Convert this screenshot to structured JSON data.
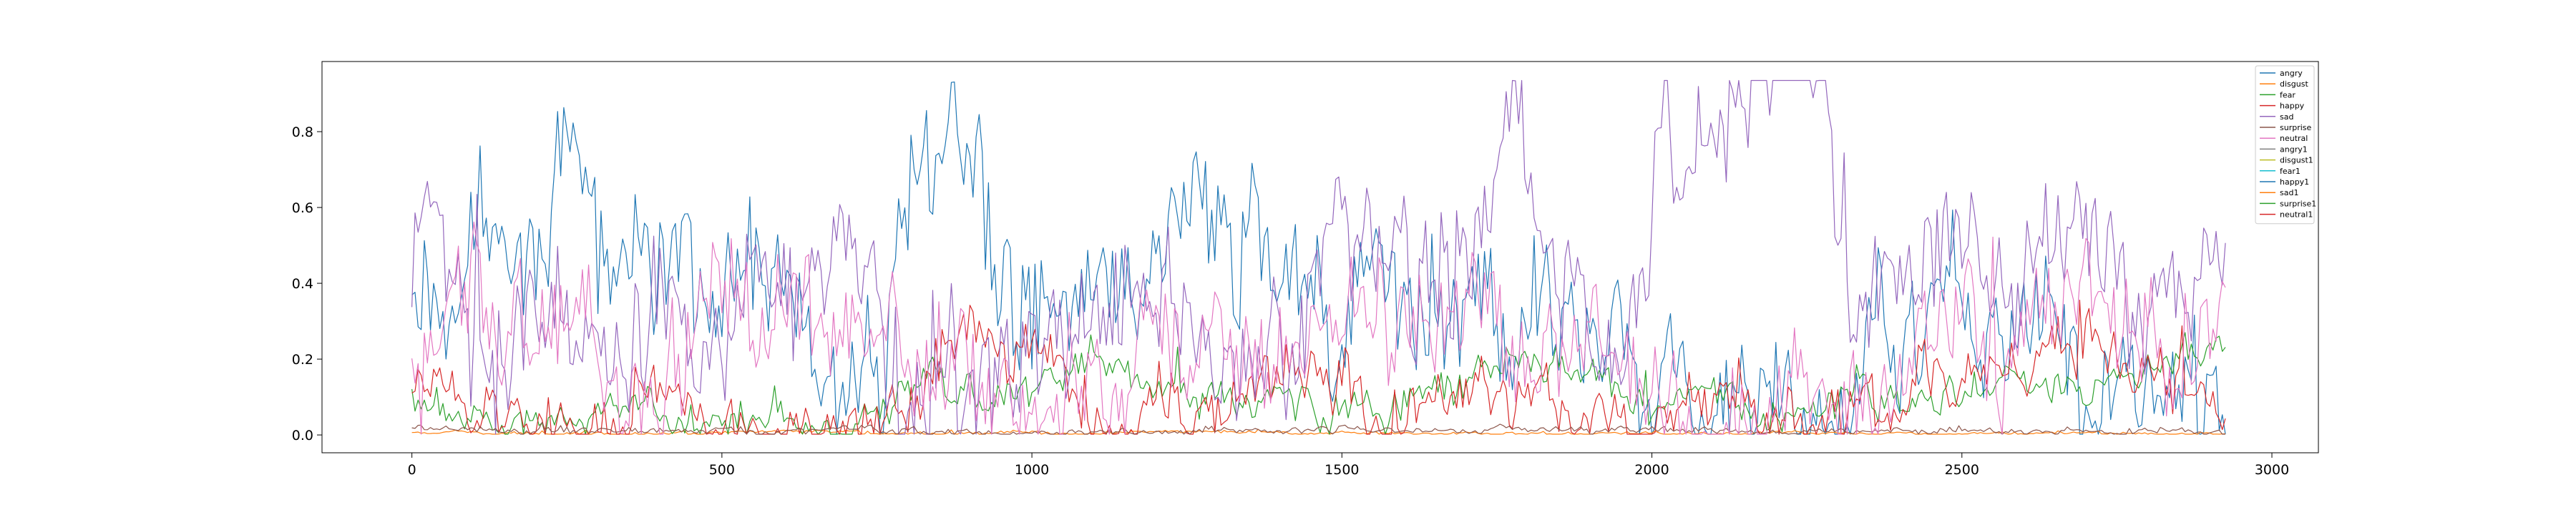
{
  "chart_data": {
    "type": "line",
    "title": "",
    "xlabel": "",
    "ylabel": "",
    "xlim": [
      -145,
      3075
    ],
    "ylim": [
      -0.047,
      0.985
    ],
    "x_ticks": [
      0,
      500,
      1000,
      1500,
      2000,
      2500,
      3000
    ],
    "x_tick_labels": [
      "0",
      "500",
      "1000",
      "1500",
      "2000",
      "2500",
      "3000"
    ],
    "y_ticks": [
      0.0,
      0.2,
      0.4,
      0.6,
      0.8
    ],
    "y_tick_labels": [
      "0.0",
      "0.2",
      "0.4",
      "0.6",
      "0.8"
    ],
    "grid": false,
    "legend_position": "top-right",
    "n_points": 2930,
    "x_step": 5,
    "series": [
      {
        "name": "angry",
        "color": "#1f77b4",
        "knots": [
          [
            0,
            0.28
          ],
          [
            60,
            0.45
          ],
          [
            130,
            0.6
          ],
          [
            200,
            0.55
          ],
          [
            280,
            0.5
          ],
          [
            350,
            0.45
          ],
          [
            430,
            0.4
          ],
          [
            500,
            0.35
          ],
          [
            560,
            0.3
          ],
          [
            620,
            0.22
          ],
          [
            700,
            0.18
          ],
          [
            760,
            0.2
          ],
          [
            790,
            0.82
          ],
          [
            850,
            0.78
          ],
          [
            900,
            0.7
          ],
          [
            940,
            0.35
          ],
          [
            1000,
            0.3
          ],
          [
            1060,
            0.45
          ],
          [
            1120,
            0.42
          ],
          [
            1180,
            0.3
          ],
          [
            1240,
            0.45
          ],
          [
            1300,
            0.55
          ],
          [
            1360,
            0.45
          ],
          [
            1420,
            0.5
          ],
          [
            1480,
            0.3
          ],
          [
            1560,
            0.35
          ],
          [
            1620,
            0.28
          ],
          [
            1700,
            0.3
          ],
          [
            1760,
            0.25
          ],
          [
            1830,
            0.28
          ],
          [
            1900,
            0.2
          ],
          [
            1960,
            0.35
          ],
          [
            2000,
            0.05
          ],
          [
            2100,
            0.04
          ],
          [
            2200,
            0.03
          ],
          [
            2300,
            0.04
          ],
          [
            2360,
            0.4
          ],
          [
            2440,
            0.45
          ],
          [
            2520,
            0.35
          ],
          [
            2600,
            0.3
          ],
          [
            2680,
            0.25
          ],
          [
            2760,
            0.18
          ],
          [
            2850,
            0.12
          ],
          [
            2930,
            0.2
          ]
        ],
        "amps": [
          0.25,
          0.18,
          0.12,
          0.06
        ]
      },
      {
        "name": "disgust",
        "color": "#ff7f0e",
        "knots": [
          [
            0,
            0.005
          ],
          [
            1000,
            0.006
          ],
          [
            2000,
            0.004
          ],
          [
            2930,
            0.005
          ]
        ],
        "amps": [
          0.006,
          0.004,
          0.003,
          0.002
        ]
      },
      {
        "name": "fear",
        "color": "#2ca02c",
        "knots": [
          [
            0,
            0.08
          ],
          [
            200,
            0.05
          ],
          [
            400,
            0.06
          ],
          [
            600,
            0.05
          ],
          [
            760,
            0.03
          ],
          [
            800,
            0.12
          ],
          [
            900,
            0.1
          ],
          [
            1000,
            0.08
          ],
          [
            1100,
            0.18
          ],
          [
            1160,
            0.12
          ],
          [
            1300,
            0.1
          ],
          [
            1500,
            0.08
          ],
          [
            1600,
            0.1
          ],
          [
            1700,
            0.1
          ],
          [
            1800,
            0.18
          ],
          [
            1900,
            0.15
          ],
          [
            2000,
            0.08
          ],
          [
            2100,
            0.1
          ],
          [
            2200,
            0.06
          ],
          [
            2300,
            0.08
          ],
          [
            2400,
            0.1
          ],
          [
            2500,
            0.12
          ],
          [
            2600,
            0.15
          ],
          [
            2700,
            0.15
          ],
          [
            2800,
            0.18
          ],
          [
            2930,
            0.22
          ]
        ],
        "amps": [
          0.07,
          0.05,
          0.03,
          0.02
        ]
      },
      {
        "name": "happy",
        "color": "#d62728",
        "knots": [
          [
            0,
            0.1
          ],
          [
            200,
            0.04
          ],
          [
            400,
            0.06
          ],
          [
            600,
            0.08
          ],
          [
            800,
            0.05
          ],
          [
            900,
            0.25
          ],
          [
            1000,
            0.2
          ],
          [
            1100,
            0.08
          ],
          [
            1300,
            0.12
          ],
          [
            1400,
            0.15
          ],
          [
            1500,
            0.12
          ],
          [
            1600,
            0.08
          ],
          [
            1700,
            0.06
          ],
          [
            1800,
            0.05
          ],
          [
            1900,
            0.04
          ],
          [
            2000,
            0.03
          ],
          [
            2300,
            0.03
          ],
          [
            2400,
            0.1
          ],
          [
            2500,
            0.15
          ],
          [
            2600,
            0.18
          ],
          [
            2700,
            0.2
          ],
          [
            2800,
            0.1
          ],
          [
            2930,
            0.05
          ]
        ],
        "amps": [
          0.12,
          0.08,
          0.05,
          0.03
        ]
      },
      {
        "name": "sad",
        "color": "#9467bd",
        "knots": [
          [
            0,
            0.35
          ],
          [
            30,
            0.55
          ],
          [
            80,
            0.4
          ],
          [
            130,
            0.3
          ],
          [
            200,
            0.35
          ],
          [
            260,
            0.3
          ],
          [
            340,
            0.35
          ],
          [
            420,
            0.45
          ],
          [
            500,
            0.4
          ],
          [
            580,
            0.45
          ],
          [
            660,
            0.5
          ],
          [
            740,
            0.45
          ],
          [
            780,
            0.1
          ],
          [
            860,
            0.15
          ],
          [
            920,
            0.2
          ],
          [
            1000,
            0.25
          ],
          [
            1080,
            0.15
          ],
          [
            1140,
            0.2
          ],
          [
            1200,
            0.35
          ],
          [
            1260,
            0.3
          ],
          [
            1340,
            0.25
          ],
          [
            1400,
            0.35
          ],
          [
            1480,
            0.45
          ],
          [
            1560,
            0.55
          ],
          [
            1620,
            0.3
          ],
          [
            1680,
            0.35
          ],
          [
            1740,
            0.55
          ],
          [
            1780,
            0.85
          ],
          [
            1820,
            0.6
          ],
          [
            1860,
            0.5
          ],
          [
            1920,
            0.35
          ],
          [
            1980,
            0.4
          ],
          [
            2020,
            0.8
          ],
          [
            2100,
            0.82
          ],
          [
            2160,
            0.85
          ],
          [
            2220,
            0.88
          ],
          [
            2280,
            0.85
          ],
          [
            2320,
            0.4
          ],
          [
            2400,
            0.45
          ],
          [
            2480,
            0.5
          ],
          [
            2560,
            0.45
          ],
          [
            2640,
            0.4
          ],
          [
            2720,
            0.5
          ],
          [
            2800,
            0.55
          ],
          [
            2880,
            0.5
          ],
          [
            2930,
            0.55
          ]
        ],
        "amps": [
          0.25,
          0.18,
          0.12,
          0.05
        ]
      },
      {
        "name": "surprise",
        "color": "#8c564b",
        "knots": [
          [
            0,
            0.015
          ],
          [
            1000,
            0.01
          ],
          [
            2000,
            0.012
          ],
          [
            2930,
            0.01
          ]
        ],
        "amps": [
          0.01,
          0.008,
          0.006,
          0.004
        ]
      },
      {
        "name": "neutral",
        "color": "#e377c2",
        "knots": [
          [
            0,
            0.2
          ],
          [
            100,
            0.25
          ],
          [
            200,
            0.3
          ],
          [
            300,
            0.25
          ],
          [
            400,
            0.2
          ],
          [
            500,
            0.28
          ],
          [
            600,
            0.25
          ],
          [
            700,
            0.2
          ],
          [
            800,
            0.15
          ],
          [
            900,
            0.2
          ],
          [
            1000,
            0.15
          ],
          [
            1100,
            0.2
          ],
          [
            1200,
            0.3
          ],
          [
            1300,
            0.2
          ],
          [
            1400,
            0.25
          ],
          [
            1500,
            0.3
          ],
          [
            1600,
            0.25
          ],
          [
            1700,
            0.3
          ],
          [
            1800,
            0.2
          ],
          [
            1900,
            0.25
          ],
          [
            2000,
            0.05
          ],
          [
            2300,
            0.04
          ],
          [
            2400,
            0.2
          ],
          [
            2500,
            0.25
          ],
          [
            2600,
            0.3
          ],
          [
            2700,
            0.35
          ],
          [
            2800,
            0.3
          ],
          [
            2930,
            0.25
          ]
        ],
        "amps": [
          0.22,
          0.15,
          0.1,
          0.05
        ]
      },
      {
        "name": "angry1",
        "color": "#7f7f7f",
        "knots": [],
        "amps": [
          0,
          0,
          0,
          0
        ]
      },
      {
        "name": "disgust1",
        "color": "#bcbd22",
        "knots": [],
        "amps": [
          0,
          0,
          0,
          0
        ]
      },
      {
        "name": "fear1",
        "color": "#17becf",
        "knots": [],
        "amps": [
          0,
          0,
          0,
          0
        ]
      },
      {
        "name": "happy1",
        "color": "#1f77b4",
        "knots": [],
        "amps": [
          0,
          0,
          0,
          0
        ]
      },
      {
        "name": "sad1",
        "color": "#ff7f0e",
        "knots": [],
        "amps": [
          0,
          0,
          0,
          0
        ]
      },
      {
        "name": "surprise1",
        "color": "#2ca02c",
        "knots": [],
        "amps": [
          0,
          0,
          0,
          0
        ]
      },
      {
        "name": "neutral1",
        "color": "#d62728",
        "knots": [],
        "amps": [
          0,
          0,
          0,
          0
        ]
      }
    ]
  }
}
